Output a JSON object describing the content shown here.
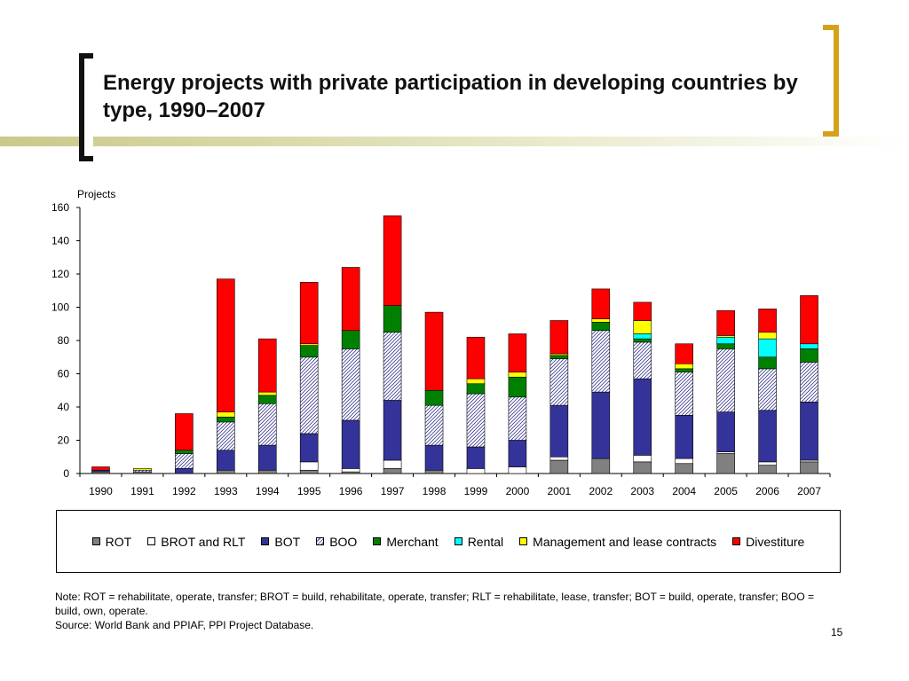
{
  "title": "Energy projects with private participation in developing countries by type, 1990–2007",
  "page_number": "15",
  "note": "Note: ROT = rehabilitate, operate, transfer; BROT = build, rehabilitate, operate, transfer; RLT = rehabilitate, lease, transfer; BOT = build, operate, transfer; BOO = build, own, operate.",
  "source": "Source: World Bank and PPIAF, PPI Project Database.",
  "colors": {
    "bracket_left": "#111111",
    "bracket_right": "#d4a21a",
    "decorative_bar": "#c9c98a"
  },
  "chart_data": {
    "type": "bar",
    "stacked": true,
    "ylabel": "Projects",
    "ylim": [
      0,
      160
    ],
    "yticks": [
      0,
      20,
      40,
      60,
      80,
      100,
      120,
      140,
      160
    ],
    "grid": false,
    "legend_position": "bottom",
    "categories": [
      "1990",
      "1991",
      "1992",
      "1993",
      "1994",
      "1995",
      "1996",
      "1997",
      "1998",
      "1999",
      "2000",
      "2001",
      "2002",
      "2003",
      "2004",
      "2005",
      "2006",
      "2007"
    ],
    "series": [
      {
        "name": "ROT",
        "color": "#808080",
        "pattern": "solid",
        "values": [
          1,
          1,
          0,
          2,
          2,
          2,
          1,
          3,
          2,
          0,
          0,
          8,
          9,
          7,
          6,
          12,
          5,
          7
        ]
      },
      {
        "name": "BROT and RLT",
        "color": "#ffffff",
        "pattern": "solid",
        "values": [
          0,
          0,
          0,
          0,
          0,
          5,
          2,
          5,
          0,
          3,
          4,
          2,
          0,
          4,
          3,
          1,
          2,
          1
        ]
      },
      {
        "name": "BOT",
        "color": "#333399",
        "pattern": "solid",
        "values": [
          1,
          0,
          3,
          12,
          15,
          17,
          29,
          36,
          15,
          13,
          16,
          31,
          40,
          46,
          26,
          24,
          31,
          35
        ]
      },
      {
        "name": "BOO",
        "color": "#ffffff",
        "pattern": "hatch",
        "values": [
          0,
          1,
          9,
          17,
          25,
          46,
          43,
          41,
          24,
          32,
          26,
          28,
          37,
          22,
          26,
          38,
          25,
          24
        ]
      },
      {
        "name": "Merchant",
        "color": "#008000",
        "pattern": "solid",
        "values": [
          0,
          0,
          2,
          3,
          5,
          7,
          11,
          16,
          9,
          6,
          12,
          2,
          5,
          2,
          2,
          3,
          7,
          8
        ]
      },
      {
        "name": "Rental",
        "color": "#00ffff",
        "pattern": "solid",
        "values": [
          0,
          0,
          0,
          0,
          0,
          0,
          0,
          0,
          0,
          0,
          0,
          0,
          0,
          3,
          0,
          4,
          11,
          3
        ]
      },
      {
        "name": "Management and lease contracts",
        "color": "#ffff00",
        "pattern": "solid",
        "values": [
          0,
          1,
          0,
          3,
          2,
          1,
          0,
          0,
          0,
          3,
          3,
          1,
          2,
          8,
          3,
          1,
          4,
          0
        ]
      },
      {
        "name": "Divestiture",
        "color": "#ff0000",
        "pattern": "solid",
        "values": [
          2,
          0,
          22,
          80,
          32,
          37,
          38,
          54,
          47,
          25,
          23,
          20,
          18,
          11,
          12,
          15,
          14,
          29
        ]
      }
    ]
  }
}
